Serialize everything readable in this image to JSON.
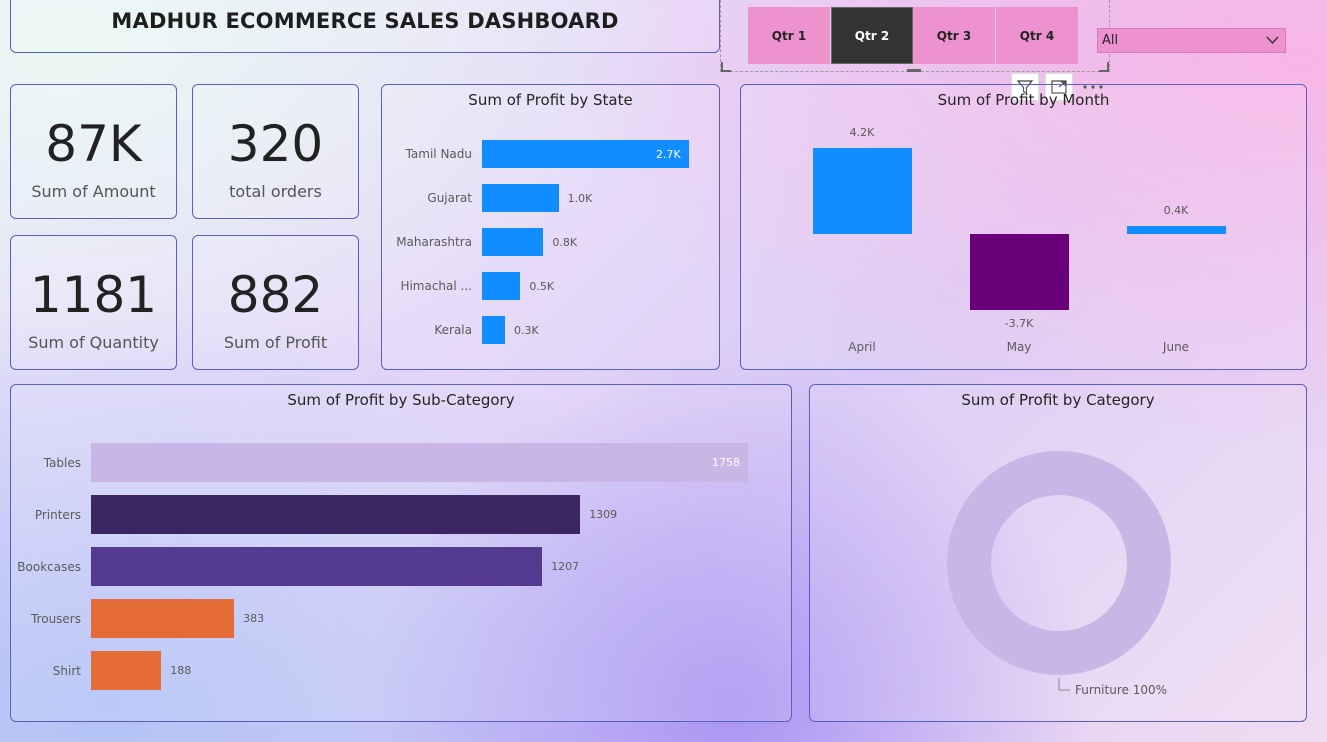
{
  "dashboard_title": "MADHUR ECOMMERCE SALES DASHBOARD",
  "slicer": {
    "quarters": [
      "Qtr 1",
      "Qtr 2",
      "Qtr 3",
      "Qtr 4"
    ],
    "selected": "Qtr 2",
    "dropdown_value": "All"
  },
  "kpis": [
    {
      "value": "87K",
      "label": "Sum of Amount"
    },
    {
      "value": "320",
      "label": "total orders"
    },
    {
      "value": "1181",
      "label": "Sum of Quantity"
    },
    {
      "value": "882",
      "label": "Sum of Profit"
    }
  ],
  "colors": {
    "blue": "#118dff",
    "purple_dark": "#6b007b",
    "lavender": "#c9b6e6",
    "indigo_dark": "#3b2563",
    "violet": "#553a92",
    "orange": "#e66c37",
    "slicer_pink": "#ee92cf"
  },
  "chart_data": [
    {
      "type": "bar",
      "title": "Sum of Profit by State",
      "categories": [
        "Tamil Nadu",
        "Gujarat",
        "Maharashtra",
        "Himachal ...",
        "Kerala"
      ],
      "values": [
        2.7,
        1.0,
        0.8,
        0.5,
        0.3
      ],
      "labels": [
        "2.7K",
        "1.0K",
        "0.8K",
        "0.5K",
        "0.3K"
      ],
      "orientation": "horizontal"
    },
    {
      "type": "bar",
      "title": "Sum of Profit by Month",
      "categories": [
        "April",
        "May",
        "June"
      ],
      "values": [
        4.2,
        -3.7,
        0.4
      ],
      "labels": [
        "4.2K",
        "-3.7K",
        "0.4K"
      ],
      "orientation": "vertical"
    },
    {
      "type": "bar",
      "title": "Sum of Profit by Sub-Category",
      "categories": [
        "Tables",
        "Printers",
        "Bookcases",
        "Trousers",
        "Shirt"
      ],
      "values": [
        1758,
        1309,
        1207,
        383,
        188
      ],
      "labels": [
        "1758",
        "1309",
        "1207",
        "383",
        "188"
      ],
      "orientation": "horizontal"
    },
    {
      "type": "pie",
      "title": "Sum of Profit by Category",
      "categories": [
        "Furniture"
      ],
      "values": [
        100
      ],
      "labels": [
        "Furniture 100%"
      ]
    }
  ]
}
